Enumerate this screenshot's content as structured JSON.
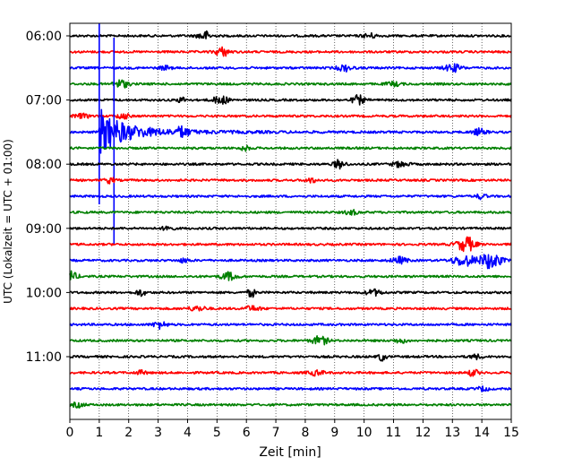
{
  "chart_data": {
    "type": "line",
    "title": "",
    "xlabel": "Zeit  [min]",
    "ylabel": "UTC (Lokalzeit = UTC + 01:00)",
    "xlim": [
      0,
      15
    ],
    "x_ticks": [
      "0",
      "1",
      "2",
      "3",
      "4",
      "5",
      "6",
      "7",
      "8",
      "9",
      "10",
      "11",
      "12",
      "13",
      "14",
      "15"
    ],
    "y_ticks": [
      "06:00",
      "07:00",
      "08:00",
      "09:00",
      "10:00",
      "11:00"
    ],
    "trace_start_times": [
      "06:00",
      "06:15",
      "06:30",
      "06:45",
      "07:00",
      "07:15",
      "07:30",
      "07:45",
      "08:00",
      "08:15",
      "08:30",
      "08:45",
      "09:00",
      "09:15",
      "09:30",
      "09:45",
      "10:00",
      "10:15",
      "10:30",
      "10:45",
      "11:00",
      "11:15",
      "11:30",
      "11:45"
    ],
    "trace_colors": [
      "#000000",
      "#ff0000",
      "#0000ff",
      "#008000"
    ],
    "grid": "vertical dotted",
    "notable_events": [
      {
        "trace": "07:30",
        "color": "blue",
        "x_min_range": [
          1.0,
          5.0
        ],
        "description": "large earthquake signal, clipped spikes at x≈1.0 and x≈1.5"
      },
      {
        "trace": "09:30",
        "color": "blue",
        "x_min_range": [
          13.0,
          15.0
        ],
        "description": "moderate signal burst"
      },
      {
        "trace": "09:45",
        "color": "green",
        "x_min_range": [
          0.0,
          0.3
        ],
        "description": "signal onset at start"
      }
    ]
  }
}
